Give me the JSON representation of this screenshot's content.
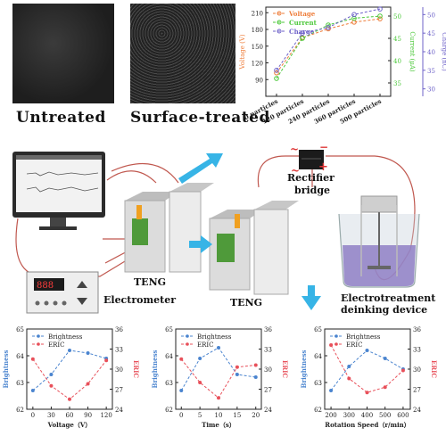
{
  "images": {
    "untreated_label": "Untreated",
    "treated_label": "Surface-treated"
  },
  "diagram": {
    "teng1": "TENG",
    "teng2": "TENG",
    "electrometer": "Electrometer",
    "rectifier_line1": "Rectifier",
    "rectifier_line2": "bridge",
    "device_line1": "Electrotreatment",
    "device_line2": "deinking device",
    "plus": "+",
    "minus": "−",
    "ac": "~",
    "colors": {
      "arrow": "#37b4e6",
      "wire": "#c0584f",
      "liquid": "#8f7fc6"
    }
  },
  "chart_data": [
    {
      "type": "line",
      "id": "top",
      "categories": [
        "0 particles",
        "120 particles",
        "240 particles",
        "360 particles",
        "500 particles"
      ],
      "series": [
        {
          "name": "Voltage",
          "axis": "left",
          "color": "#ee7d3a",
          "values": [
            102,
            165,
            181,
            193,
            199
          ]
        },
        {
          "name": "Current",
          "axis": "right1",
          "color": "#4cc83a",
          "values": [
            36,
            45,
            48,
            49.5,
            50
          ]
        },
        {
          "name": "Charge",
          "axis": "right2",
          "color": "#6f63c9",
          "values": [
            35,
            45,
            46.5,
            50,
            51.5
          ]
        }
      ],
      "axes": {
        "left": {
          "label": "Voltage (V)",
          "min": 60,
          "max": 220,
          "ticks": [
            90,
            120,
            150,
            180,
            210
          ],
          "color": "#ee7d3a"
        },
        "right1": {
          "label": "Current (μA)",
          "min": 32,
          "max": 52,
          "ticks": [
            35,
            40,
            45,
            50
          ],
          "color": "#4cc83a"
        },
        "right2": {
          "label": "Charge (nC)",
          "min": 28,
          "max": 52,
          "ticks": [
            30,
            35,
            40,
            45,
            50
          ],
          "color": "#6f63c9"
        }
      }
    },
    {
      "type": "line",
      "id": "voltage",
      "xlabel": "Voltage（V）",
      "x": [
        0,
        30,
        60,
        90,
        120
      ],
      "xlim": [
        -10,
        130
      ],
      "series": [
        {
          "name": "Brightness",
          "axis": "left",
          "color": "#4a84cf",
          "values": [
            62.7,
            63.3,
            64.2,
            64.1,
            63.9
          ]
        },
        {
          "name": "ERIC",
          "axis": "right",
          "color": "#e8505a",
          "values": [
            31.5,
            27.5,
            25.5,
            27.8,
            31.3
          ]
        }
      ],
      "axes": {
        "left": {
          "label": "Brightness",
          "min": 62,
          "max": 65,
          "ticks": [
            62,
            63,
            64,
            65
          ],
          "color": "#4a84cf"
        },
        "right": {
          "label": "ERIC",
          "min": 24,
          "max": 36,
          "ticks": [
            24,
            27,
            30,
            33,
            36
          ],
          "color": "#e8505a"
        }
      }
    },
    {
      "type": "line",
      "id": "time",
      "xlabel": "Time（s）",
      "x": [
        0,
        5,
        10,
        15,
        20
      ],
      "xlim": [
        -1.5,
        21.5
      ],
      "series": [
        {
          "name": "Brightness",
          "axis": "left",
          "color": "#4a84cf",
          "values": [
            62.7,
            63.9,
            64.3,
            63.3,
            63.2
          ]
        },
        {
          "name": "ERIC",
          "axis": "right",
          "color": "#e8505a",
          "values": [
            31.5,
            28.0,
            25.7,
            30.3,
            30.6
          ]
        }
      ],
      "axes": {
        "left": {
          "label": "Brightness",
          "min": 62,
          "max": 65,
          "ticks": [
            62,
            63,
            64,
            65
          ],
          "color": "#4a84cf"
        },
        "right": {
          "label": "ERIC",
          "min": 24,
          "max": 36,
          "ticks": [
            24,
            27,
            30,
            33,
            36
          ],
          "color": "#e8505a"
        }
      }
    },
    {
      "type": "line",
      "id": "rotation",
      "xlabel": "Rotation Speed（r/min）",
      "x": [
        200,
        300,
        400,
        500,
        600
      ],
      "xlim": [
        165,
        640
      ],
      "series": [
        {
          "name": "Brightness",
          "axis": "left",
          "color": "#4a84cf",
          "values": [
            62.7,
            63.6,
            64.2,
            63.9,
            63.5
          ]
        },
        {
          "name": "ERIC",
          "axis": "right",
          "color": "#e8505a",
          "values": [
            33.6,
            28.6,
            26.5,
            27.3,
            29.8
          ]
        }
      ],
      "axes": {
        "left": {
          "label": "Brightness",
          "min": 62,
          "max": 65,
          "ticks": [
            62,
            63,
            64,
            65
          ],
          "color": "#4a84cf"
        },
        "right": {
          "label": "ERIC",
          "min": 24,
          "max": 36,
          "ticks": [
            24,
            27,
            30,
            33,
            36
          ],
          "color": "#e8505a"
        }
      }
    }
  ]
}
